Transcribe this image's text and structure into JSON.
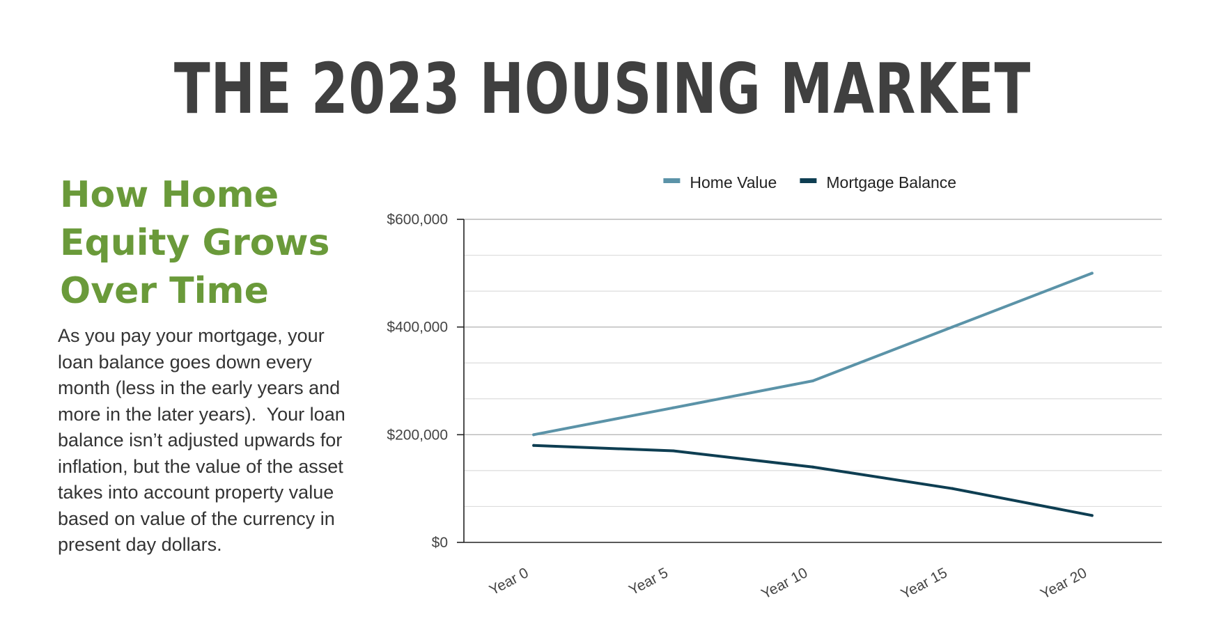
{
  "page": {
    "title": "THE 2023 HOUSING MARKET",
    "subheading_lines": [
      "How Home",
      "Equity Grows",
      "Over Time"
    ],
    "body_lines": [
      "As you pay your mortgage, your",
      "loan balance goes down every",
      "month (less in the early years and",
      "more in the later years).  Your loan",
      "balance isn’t adjusted upwards for",
      "inflation, but the value of the asset",
      "takes into account property value",
      "based on value of the currency in",
      "present day dollars."
    ]
  },
  "chart_data": {
    "type": "line",
    "title": "",
    "xlabel": "",
    "ylabel": "",
    "categories": [
      "Year 0",
      "Year 5",
      "Year 10",
      "Year 15",
      "Year 20"
    ],
    "series": [
      {
        "name": "Home Value",
        "color": "#5b93a8",
        "values": [
          200000,
          250000,
          300000,
          400000,
          500000
        ]
      },
      {
        "name": "Mortgage Balance",
        "color": "#0e3e52",
        "values": [
          180000,
          170000,
          140000,
          100000,
          50000
        ]
      }
    ],
    "ylim": [
      0,
      600000
    ],
    "y_ticks": [
      {
        "value": 0,
        "label": "$0"
      },
      {
        "value": 200000,
        "label": "$200,000"
      },
      {
        "value": 400000,
        "label": "$400,000"
      },
      {
        "value": 600000,
        "label": "$600,000"
      }
    ],
    "minor_gridlines_per_major": 3,
    "grid": true,
    "legend_position": "top"
  }
}
